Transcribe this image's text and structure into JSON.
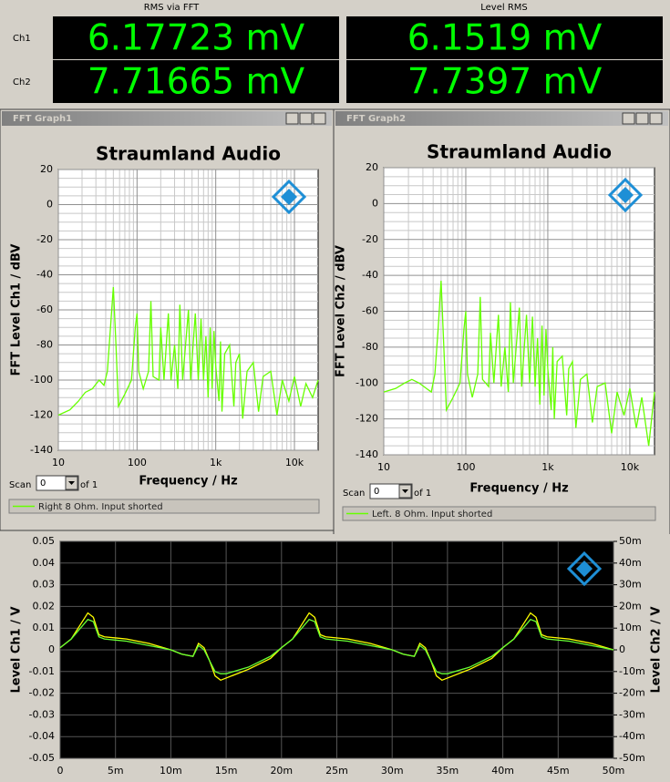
{
  "meters": {
    "headers": [
      "RMS via FFT",
      "Level RMS"
    ],
    "rows": [
      {
        "label": "Ch1",
        "values": [
          "6.17723 mV",
          "6.1519 mV"
        ]
      },
      {
        "label": "Ch2",
        "values": [
          "7.71665 mV",
          "7.7397 mV"
        ]
      }
    ]
  },
  "chart_data": [
    {
      "type": "line",
      "window_title": "FFT Graph1",
      "title": "Straumland Audio",
      "x_label": "Frequency / Hz",
      "y_label": "FFT Level Ch1 / dBV",
      "log_x": true,
      "grid": true,
      "minor_grid": true,
      "background": "#ffffff",
      "grid_color": "#909090",
      "xlim": [
        10,
        20000
      ],
      "xticks": [
        10,
        100,
        {
          "value": 1000,
          "label": "1k"
        },
        {
          "value": 10000,
          "label": "10k"
        }
      ],
      "ylim": [
        -140,
        20
      ],
      "yticks": [
        -140,
        -120,
        -100,
        -80,
        -60,
        -40,
        -20,
        0,
        20
      ],
      "scan_label": "Scan",
      "scan_value": "0",
      "scan_of": "of 1",
      "legend": "bottom",
      "x": [
        10,
        14,
        18,
        22,
        27,
        33,
        38,
        42,
        46,
        50,
        54,
        58,
        70,
        85,
        95,
        100,
        105,
        120,
        140,
        150,
        160,
        190,
        200,
        220,
        250,
        270,
        300,
        330,
        350,
        380,
        450,
        480,
        550,
        600,
        650,
        700,
        750,
        800,
        850,
        900,
        950,
        1000,
        1100,
        1150,
        1200,
        1300,
        1500,
        1700,
        1800,
        2000,
        2200,
        2500,
        3000,
        3500,
        4000,
        5000,
        6000,
        7000,
        8500,
        10000,
        12000,
        14000,
        17000,
        20000
      ],
      "series": [
        {
          "name": "Right 8 Ohm. Input shorted",
          "color": "#66ff00",
          "values": [
            -120,
            -117,
            -112,
            -107,
            -105,
            -100,
            -103,
            -95,
            -70,
            -47,
            -80,
            -115,
            -108,
            -100,
            -70,
            -62,
            -95,
            -105,
            -95,
            -55,
            -98,
            -100,
            -70,
            -100,
            -62,
            -100,
            -80,
            -105,
            -57,
            -100,
            -60,
            -100,
            -62,
            -100,
            -65,
            -100,
            -75,
            -110,
            -70,
            -105,
            -72,
            -92,
            -112,
            -78,
            -118,
            -85,
            -80,
            -115,
            -90,
            -85,
            -122,
            -95,
            -90,
            -118,
            -98,
            -95,
            -120,
            -100,
            -112,
            -98,
            -115,
            -102,
            -110,
            -100
          ]
        }
      ]
    },
    {
      "type": "line",
      "window_title": "FFT Graph2",
      "title": "Straumland Audio",
      "x_label": "Frequency / Hz",
      "y_label": "FFT Level Ch2 / dBV",
      "log_x": true,
      "grid": true,
      "minor_grid": true,
      "background": "#ffffff",
      "grid_color": "#909090",
      "xlim": [
        10,
        20000
      ],
      "xticks": [
        10,
        100,
        {
          "value": 1000,
          "label": "1k"
        },
        {
          "value": 10000,
          "label": "10k"
        }
      ],
      "ylim": [
        -140,
        20
      ],
      "yticks": [
        -140,
        -120,
        -100,
        -80,
        -60,
        -40,
        -20,
        0,
        20
      ],
      "scan_label": "Scan",
      "scan_value": "0",
      "scan_of": "of 1",
      "legend": "bottom",
      "x": [
        10,
        14,
        18,
        22,
        27,
        33,
        38,
        42,
        46,
        50,
        54,
        58,
        70,
        85,
        95,
        100,
        105,
        120,
        140,
        150,
        160,
        190,
        200,
        220,
        250,
        270,
        300,
        330,
        350,
        380,
        450,
        480,
        550,
        600,
        650,
        700,
        750,
        800,
        850,
        900,
        950,
        1000,
        1100,
        1150,
        1200,
        1300,
        1500,
        1700,
        1800,
        2000,
        2200,
        2500,
        3000,
        3500,
        4000,
        5000,
        6000,
        7000,
        8500,
        10000,
        12000,
        14000,
        17000,
        20000
      ],
      "series": [
        {
          "name": "Left. 8 Ohm. Input shorted",
          "color": "#66ff00",
          "values": [
            -105,
            -103,
            -100,
            -98,
            -100,
            -103,
            -105,
            -95,
            -70,
            -43,
            -80,
            -115,
            -108,
            -100,
            -70,
            -60,
            -95,
            -108,
            -95,
            -52,
            -98,
            -102,
            -72,
            -100,
            -62,
            -102,
            -80,
            -105,
            -55,
            -100,
            -58,
            -102,
            -62,
            -100,
            -63,
            -102,
            -75,
            -112,
            -68,
            -107,
            -70,
            -92,
            -115,
            -80,
            -120,
            -88,
            -85,
            -118,
            -92,
            -88,
            -125,
            -98,
            -95,
            -122,
            -102,
            -100,
            -128,
            -105,
            -118,
            -103,
            -125,
            -108,
            -135,
            -105
          ]
        }
      ]
    },
    {
      "type": "line",
      "y_label": "Level Ch1 / V",
      "y2_label": "Level Ch2 / V",
      "grid": true,
      "background": "#000000",
      "grid_color": "#555555",
      "xlim": [
        0,
        0.05
      ],
      "xticks": [
        0,
        {
          "value": 0.005,
          "label": "5m"
        },
        {
          "value": 0.01,
          "label": "10m"
        },
        {
          "value": 0.015,
          "label": "15m"
        },
        {
          "value": 0.02,
          "label": "20m"
        },
        {
          "value": 0.025,
          "label": "25m"
        },
        {
          "value": 0.03,
          "label": "30m"
        },
        {
          "value": 0.035,
          "label": "35m"
        },
        {
          "value": 0.04,
          "label": "40m"
        },
        {
          "value": 0.045,
          "label": "45m"
        },
        {
          "value": 0.05,
          "label": "50m"
        }
      ],
      "ylim": [
        -0.05,
        0.05
      ],
      "yticks": [
        -0.05,
        -0.04,
        -0.03,
        -0.02,
        -0.01,
        0,
        0.01,
        0.02,
        0.03,
        0.04,
        0.05
      ],
      "y2lim": [
        -0.05,
        0.05
      ],
      "y2ticks": [
        {
          "value": -0.05,
          "label": "-50m"
        },
        {
          "value": -0.04,
          "label": "-40m"
        },
        {
          "value": -0.03,
          "label": "-30m"
        },
        {
          "value": -0.02,
          "label": "-20m"
        },
        {
          "value": -0.01,
          "label": "-10m"
        },
        0,
        {
          "value": 0.01,
          "label": "10m"
        },
        {
          "value": 0.02,
          "label": "20m"
        },
        {
          "value": 0.03,
          "label": "30m"
        },
        {
          "value": 0.04,
          "label": "40m"
        },
        {
          "value": 0.05,
          "label": "50m"
        }
      ],
      "x": [
        0,
        0.001,
        0.002,
        0.0025,
        0.003,
        0.0035,
        0.004,
        0.006,
        0.008,
        0.01,
        0.011,
        0.012,
        0.0125,
        0.013,
        0.0135,
        0.014,
        0.0145,
        0.015,
        0.017,
        0.019,
        0.02,
        0.021,
        0.022,
        0.0225,
        0.023,
        0.0235,
        0.024,
        0.026,
        0.028,
        0.03,
        0.031,
        0.032,
        0.0325,
        0.033,
        0.0335,
        0.034,
        0.0345,
        0.035,
        0.037,
        0.039,
        0.04,
        0.041,
        0.042,
        0.0425,
        0.043,
        0.0435,
        0.044,
        0.046,
        0.048,
        0.05
      ],
      "series": [
        {
          "color": "#ffff00",
          "values": [
            0.001,
            0.005,
            0.013,
            0.017,
            0.015,
            0.007,
            0.006,
            0.005,
            0.003,
            0,
            -0.002,
            -0.003,
            0.003,
            0.001,
            -0.005,
            -0.012,
            -0.014,
            -0.013,
            -0.009,
            -0.004,
            0.001,
            0.005,
            0.013,
            0.017,
            0.015,
            0.007,
            0.006,
            0.005,
            0.003,
            0,
            -0.002,
            -0.003,
            0.003,
            0.001,
            -0.005,
            -0.012,
            -0.014,
            -0.013,
            -0.009,
            -0.004,
            0.001,
            0.005,
            0.013,
            0.017,
            0.015,
            0.007,
            0.006,
            0.005,
            0.003,
            0
          ]
        },
        {
          "color": "#66ff33",
          "axis": "y2",
          "values": [
            0.001,
            0.005,
            0.011,
            0.014,
            0.013,
            0.006,
            0.005,
            0.004,
            0.002,
            0,
            -0.002,
            -0.003,
            0.002,
            0,
            -0.005,
            -0.01,
            -0.011,
            -0.011,
            -0.008,
            -0.003,
            0.001,
            0.005,
            0.011,
            0.014,
            0.013,
            0.006,
            0.005,
            0.004,
            0.002,
            0,
            -0.002,
            -0.003,
            0.002,
            0,
            -0.005,
            -0.01,
            -0.011,
            -0.011,
            -0.008,
            -0.003,
            0.001,
            0.005,
            0.011,
            0.014,
            0.013,
            0.006,
            0.005,
            0.004,
            0.002,
            0
          ]
        }
      ]
    }
  ]
}
